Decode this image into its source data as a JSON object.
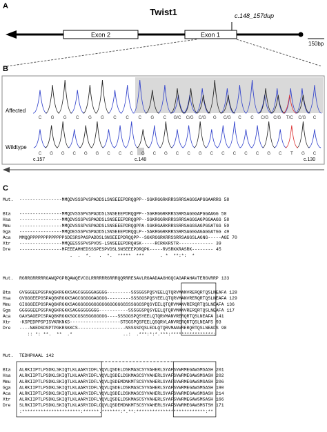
{
  "panel_a": {
    "label": "A",
    "title": "Twist1",
    "mutation": "c.148_157dup",
    "exon2": "Exon 2",
    "exon1": "Exon 1",
    "scale": "150bp"
  },
  "panel_b": {
    "label": "B",
    "affected": "Affected",
    "wildtype": "Wildtype",
    "affected_bases": [
      "C",
      "G",
      "G",
      "C",
      "G",
      "G",
      "C",
      "C",
      "C",
      "G",
      "C",
      "G/C",
      "C/G",
      "C/G",
      "G",
      "C/G",
      "C",
      "C",
      "C/G",
      "C/G",
      "T/C",
      "C/G",
      "C"
    ],
    "wildtype_bases": [
      "C",
      "G",
      "G",
      "C",
      "G",
      "G",
      "C",
      "C",
      "C",
      "G",
      "C",
      "G",
      "C",
      "C",
      "G",
      "C",
      "C",
      "C",
      "C",
      "C",
      "G",
      "C",
      "T",
      "G",
      "C"
    ],
    "pos_left": "c.157",
    "pos_mid": "c.148",
    "pos_right": "c.130"
  },
  "panel_c": {
    "label": "C",
    "blocks": [
      {
        "rows": [
          [
            "Mut.",
            "----------------MMQDVSSSPVSPADDSLSNSEEEPDRQQPP--SGKRGGRKRRSSRRSAGGGAPGGAARRG",
            "58"
          ],
          [
            "Bta",
            "----------------MMQDVSSSPVSPADDSLSNSEEEPDRQQPP--SGKRGGRKRRSSRRSAGGGAPGGAAGG",
            "58"
          ],
          [
            "Hsa",
            "----------------MMQDVSSSPVSPADDSLSNSEEEPDRQQPP--SGKRGGRKRRSSRRSAGGGAGPGGAAGG",
            "58"
          ],
          [
            "Mmu",
            "----------------MMQDVSSSPVSPADDSLSNSEEEPDRQQPPA-SGKRGARKRRSSRRSAGGSAGPGGATGG",
            "59"
          ],
          [
            "Gga",
            "----------------MMQDESSSPVSPADDSLSNSEEEPDRQQLP--SAKRGGRKRRSSRRSAGGGAGAGGATGG",
            "49"
          ],
          [
            "Aca",
            "MMQQPPPPPPPPPPPPPSDESRSPASPADDSLSNSEEEPDRQQPP--SGKRGGRKRRSSRRSAGGSLAGNG-----AGE",
            "70"
          ],
          [
            "Xtr",
            "----------------MMQEESSSPVSPVDS-LSNSEEEPDRQHSK-----RCRKKRSTR-------------",
            "39"
          ],
          [
            "Dre",
            "----------------MFEEEAMHEDSSSPESPVDSLSNSEEEPDRQPK-----RVSRKKRASRK--------",
            "45"
          ]
        ],
        "consensus": "                   .  .  *.   .  *.  *****  ***      . *  **:*:  *"
      },
      {
        "rows": [
          [
            "Mut.",
            "RGRRGRRRRRGAWQPGPRQAWQEVCGLRRRRRRGRRRQQRRRESAVLRGAADAAGHGQCAGAPAHAVTERGVRRP",
            "133"
          ],
          [
            "Bta",
            "GVGGGEEPGSPAQGKRGKKSAGCGGGGGAGGGG---------SSSGGSPQSYEELQTQRVMANVRERQRTQSLNEAFA",
            "128"
          ],
          [
            "Hsa",
            "GVGGGEEPGSPAQGKRGKKSAGCGGGGGAGGGG---------SSSGGSPQSYEELQTQRVMANVRERQRTQSLNEAFA",
            "129"
          ],
          [
            "Mmu",
            "GIGGGEEPGSPAQGKRGKKSAGGGGGGGGGGGGGGGGGGGSSSGGGSPQSYEELQTQRVMANVRERQRTQSLNEAFA",
            "136"
          ],
          [
            "Gga",
            "GGGGGEEPGSPAQGKRGKKSAGGGGGGGGG-----------SSSGGSPQSYEELQTQRVMANVRERQRTQSLNEAFA",
            "117"
          ],
          [
            "Aca",
            "GAVSAGEPCSPAQGKRGKKSGCGSGSGGGGGGG----SSSGGSPQSYEELQTQRVMANVRERQRTQSLNEAFA",
            "141"
          ],
          [
            "Xtr",
            "-KSPEDPPSPISVKRKNKS-------------------STSGSPQSFEELQSQRVLANVRERQRTQSLNEAFS",
            "93"
          ],
          [
            "Dre",
            "----NAEDSDSPTPGKRSKKCS------------------NSSSSPQSLEDLQTQRVMANVRERQRTQSLNEAFS",
            "98"
          ]
        ],
        "consensus": "   :: *: **.  **  .*                   ..:  .***:*:*.***:****************:"
      },
      {
        "rows": [
          [
            "Mut.",
            "TEDHPHAAL",
            "142"
          ],
          [
            "Bta",
            "ALRKIIPTLPSDKLSKIQTLKLAARYIDFLYQVLQSDELDSKMASCSYVAHERLSYAFSVWRMEGAWSMSASH",
            "201"
          ],
          [
            "Hsa",
            "ALRKIIPTLPSDKLSKIQTLKLAARYIDFLYQVLQSDELDSKMASCSYVAHERLSYAFSVWRMEGAWSMSASH",
            "202"
          ],
          [
            "Mmu",
            "ALRKIIPTLPSDKLSKIQTLKLAARYIDFLYQVLQSDEMDNKMTSCSYVAHERLSYAFSVWRMEGAWSMSASH",
            "206"
          ],
          [
            "Gga",
            "ALRKIIPTLPSDKLSKIQTLKLAARYIDFLYQVLQSDELDSKMASCSYVAHERLSYAFSVWRMEGAWSMSASH",
            "190"
          ],
          [
            "Aca",
            "ALRKIIPTLPSDKLSKIQTLKLAARYIDFLYQVLQSDELDSKMASCSYVAHERLSYAFSVWRMEGAWSMSASH",
            "214"
          ],
          [
            "Xtr",
            "ALRKIIPTLPSDKLSKIQTLKLAARYIDFLYQVLQSDELDSKMASCSYVAHERLSYAFSVWRMEGAWSMSASH",
            "166"
          ],
          [
            "Dre",
            "SLRKIIPTLPSDKLSKIQTLKLASRYIDFLCQVLQSDEMDNKMTSCSYVAHERLSYAFSVWRMEGAWSMSTSH",
            "171"
          ]
        ],
        "consensus": ":**********************:******.*******:*.**:**************************:**"
      }
    ]
  }
}
